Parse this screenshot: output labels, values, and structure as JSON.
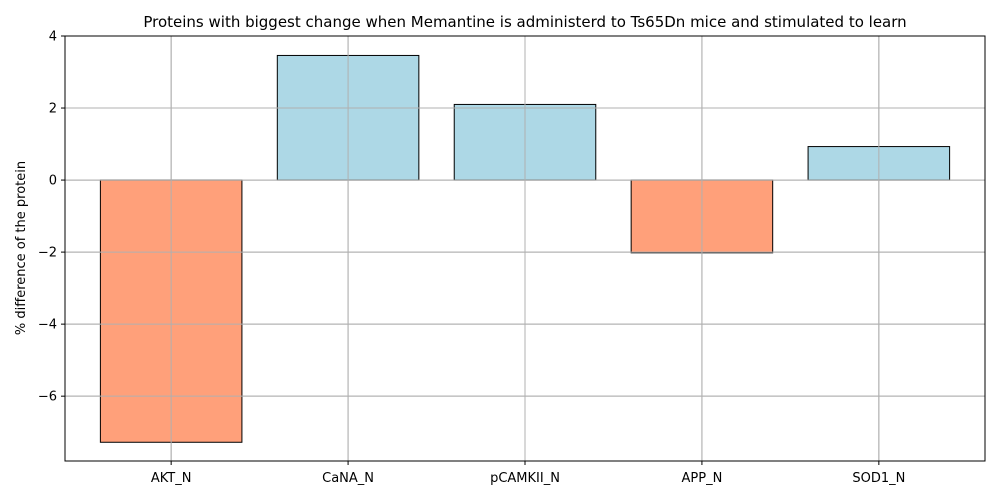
{
  "chart_data": {
    "type": "bar",
    "title": "Proteins with biggest change when Memantine is administerd to Ts65Dn mice and stimulated to learn",
    "xlabel": "",
    "ylabel": "% difference of the protein",
    "categories": [
      "AKT_N",
      "CaNA_N",
      "pCAMKII_N",
      "APP_N",
      "SOD1_N"
    ],
    "values": [
      -7.28,
      3.46,
      2.1,
      -2.02,
      0.93
    ],
    "ylim": [
      -7.8,
      4.0
    ],
    "yticks": [
      -6,
      -4,
      -2,
      0,
      2,
      4
    ],
    "ytick_labels": [
      "−6",
      "−4",
      "−2",
      "0",
      "2",
      "4"
    ],
    "grid": true,
    "colors": {
      "positive": "#add8e6",
      "negative": "#ffa07a",
      "edge": "#000000",
      "grid": "#b0b0b0"
    }
  }
}
